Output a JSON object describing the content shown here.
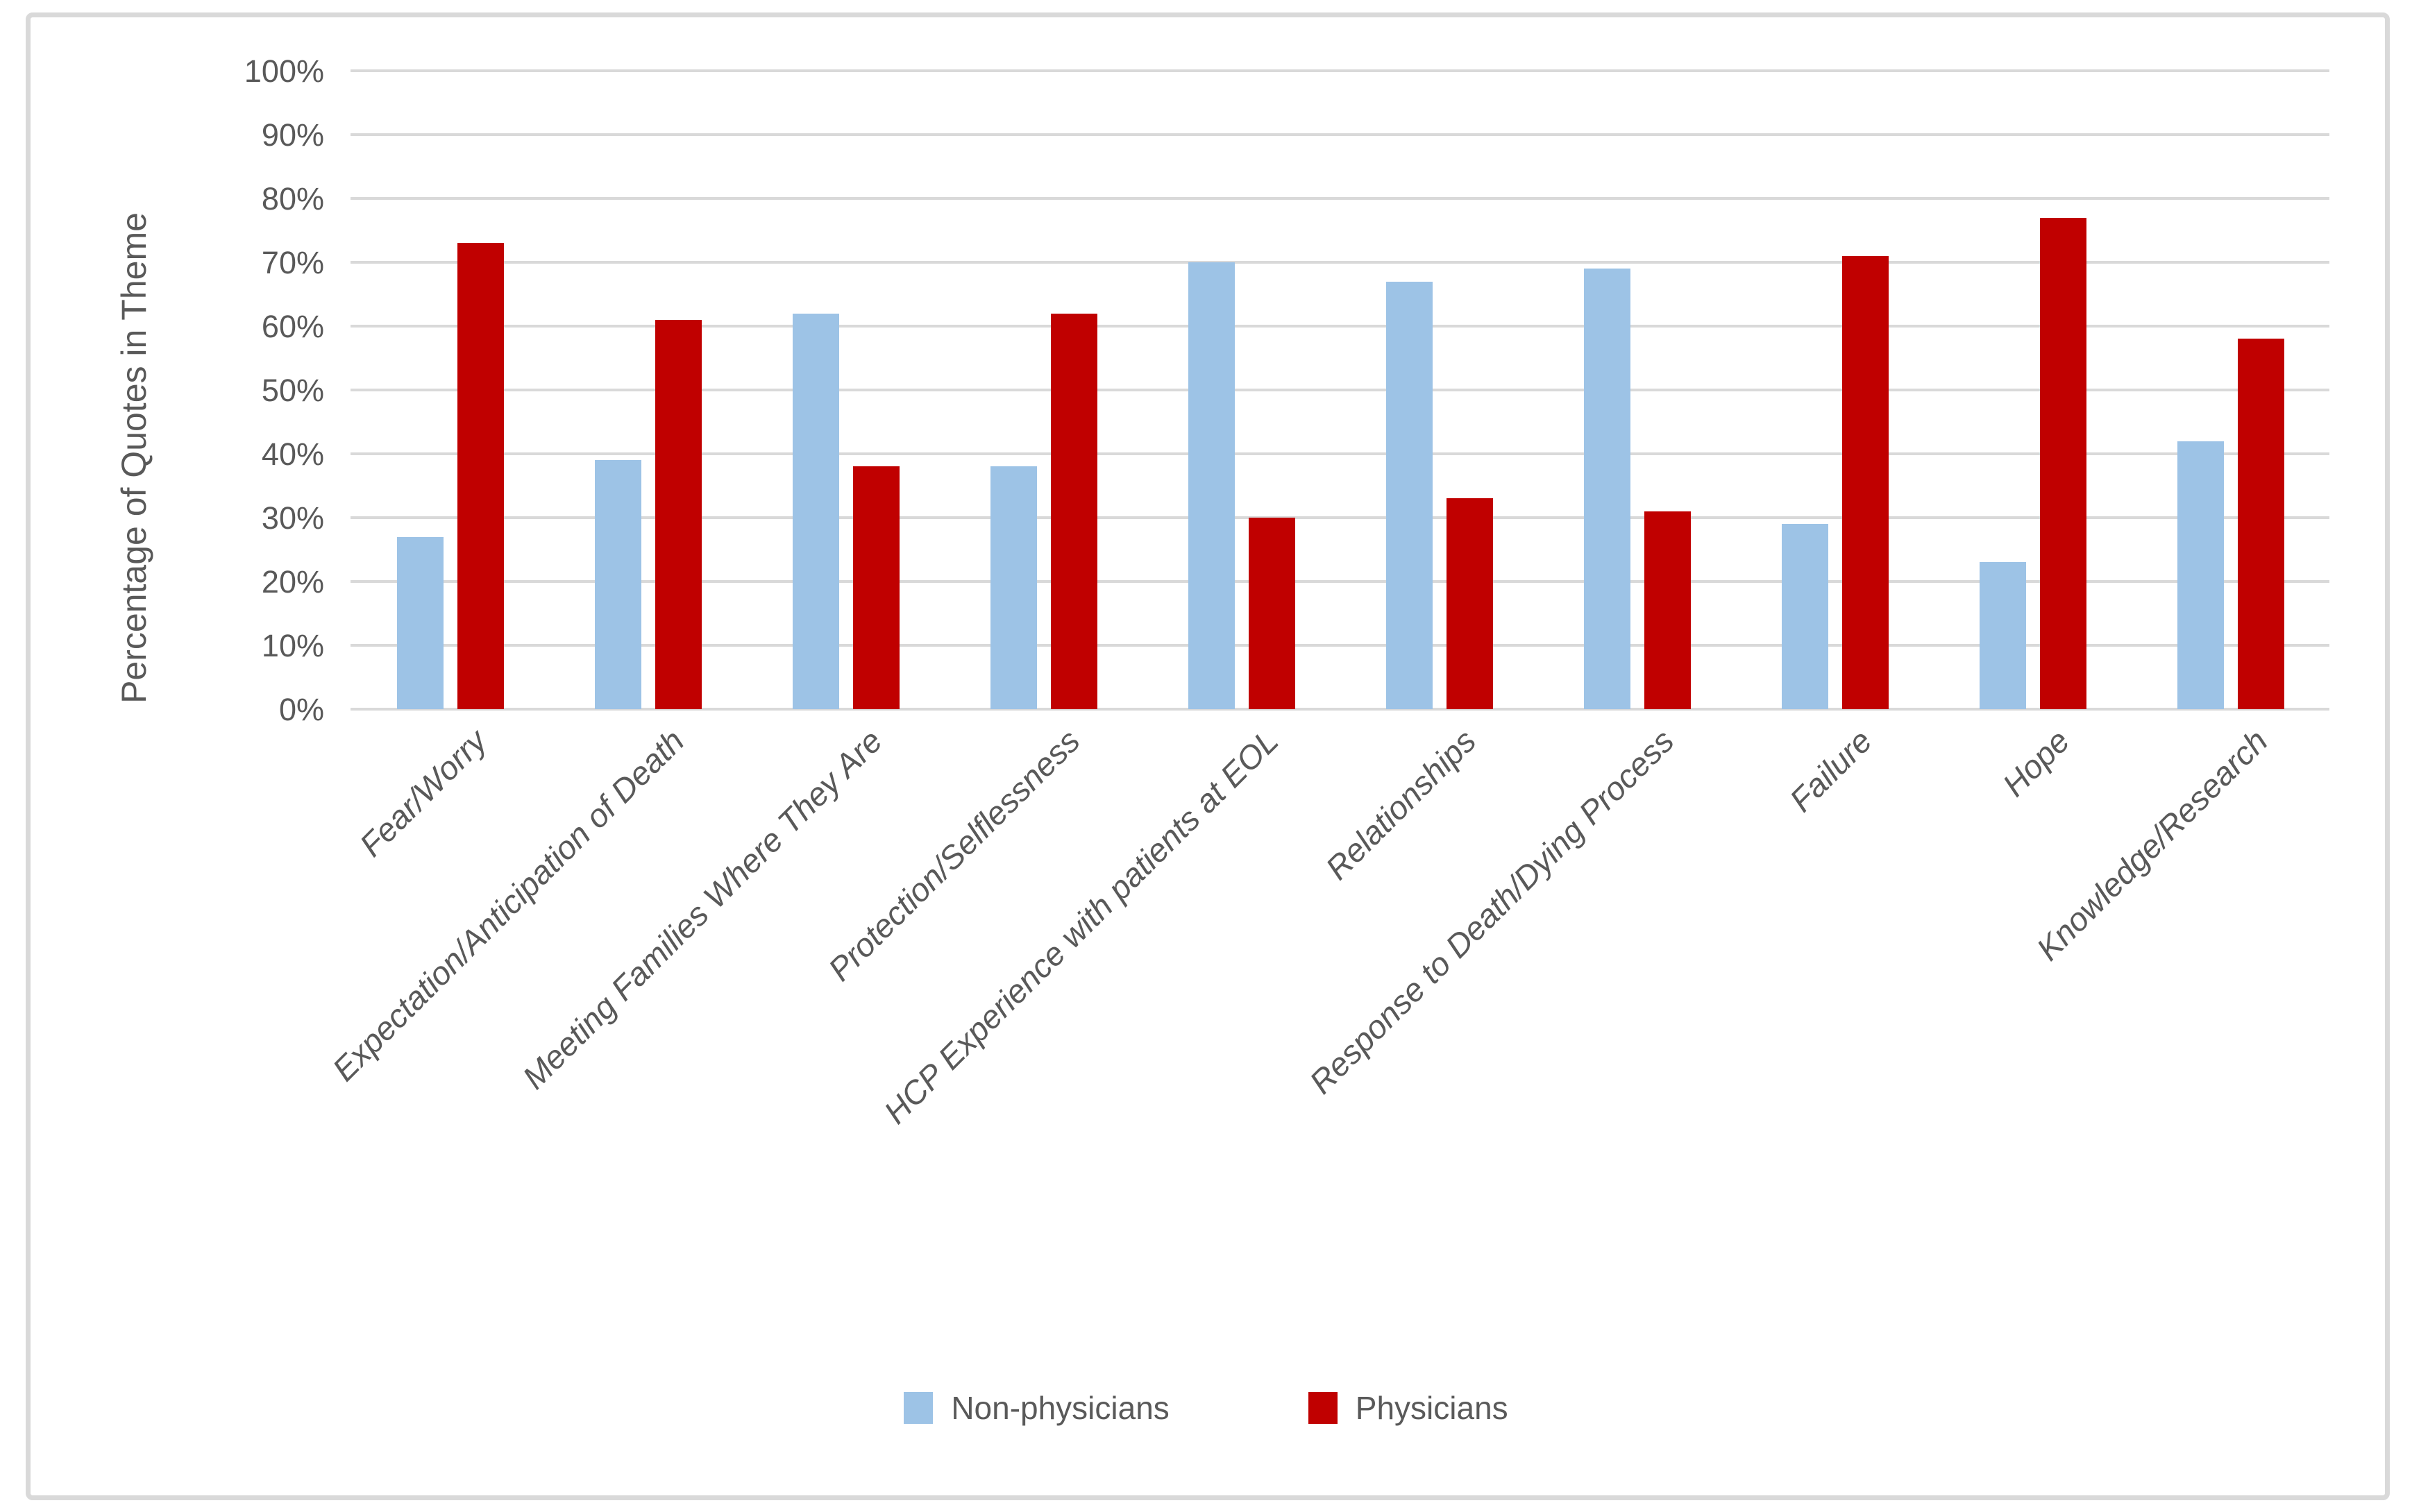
{
  "figure": {
    "background_color": "#FFFFFF",
    "border_color": "#D9D9D9",
    "gridline_color": "#D9D9D9",
    "text_color": "#595959"
  },
  "y_axis": {
    "tick_labels": [
      "0%",
      "10%",
      "20%",
      "30%",
      "40%",
      "50%",
      "60%",
      "70%",
      "80%",
      "90%",
      "100%"
    ],
    "tick_values": [
      0,
      10,
      20,
      30,
      40,
      50,
      60,
      70,
      80,
      90,
      100
    ]
  },
  "legend": {
    "entries": [
      {
        "label": "Non-physicians",
        "color": "#9DC3E6"
      },
      {
        "label": "Physicians",
        "color": "#C00000"
      }
    ]
  },
  "chart_data": {
    "type": "bar",
    "title": "",
    "categories": [
      "Fear/Worry",
      "Expectation/Anticipation of Death",
      "Meeting Families Where They Are",
      "Protection/Selflessness",
      "HCP Experience with patients at EOL",
      "Relationships",
      "Response to Death/Dying Process",
      "Failure",
      "Hope",
      "Knowledge/Research"
    ],
    "series": [
      {
        "name": "Non-physicians",
        "color": "#9DC3E6",
        "values": [
          27,
          39,
          62,
          38,
          70,
          67,
          69,
          29,
          23,
          42
        ]
      },
      {
        "name": "Physicians",
        "color": "#C00000",
        "values": [
          73,
          61,
          38,
          62,
          30,
          33,
          31,
          71,
          77,
          58
        ]
      }
    ],
    "xlabel": "",
    "ylabel": "Percentage of Quotes in Theme",
    "ylim": [
      0,
      100
    ],
    "y_step": 10,
    "grid": true,
    "legend_position": "bottom",
    "x_label_style": "italic, rotated 45 degrees"
  }
}
